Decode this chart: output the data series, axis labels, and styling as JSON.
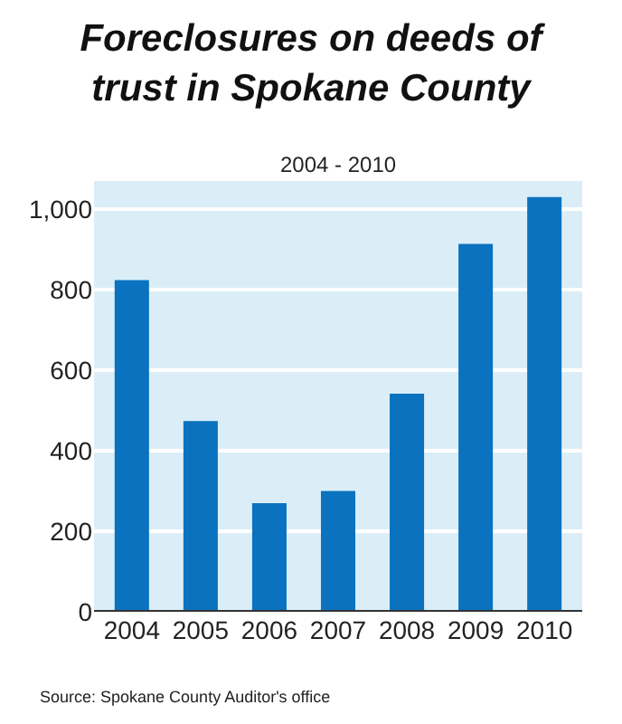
{
  "chart_data": {
    "type": "bar",
    "title": "Foreclosures on deeds of trust in Spokane County",
    "subtitle": "2004 - 2010",
    "categories": [
      "2004",
      "2005",
      "2006",
      "2007",
      "2008",
      "2009",
      "2010"
    ],
    "values": [
      824,
      474,
      270,
      300,
      542,
      914,
      1030
    ],
    "color": "#0a72be",
    "ylim": [
      0,
      1070
    ],
    "yticks": [
      0,
      200,
      400,
      600,
      800,
      {
        "value": 1000,
        "label": "1,000"
      }
    ],
    "grid": "y",
    "annotations": [
      "Source: Spokane County Auditor's office"
    ]
  }
}
